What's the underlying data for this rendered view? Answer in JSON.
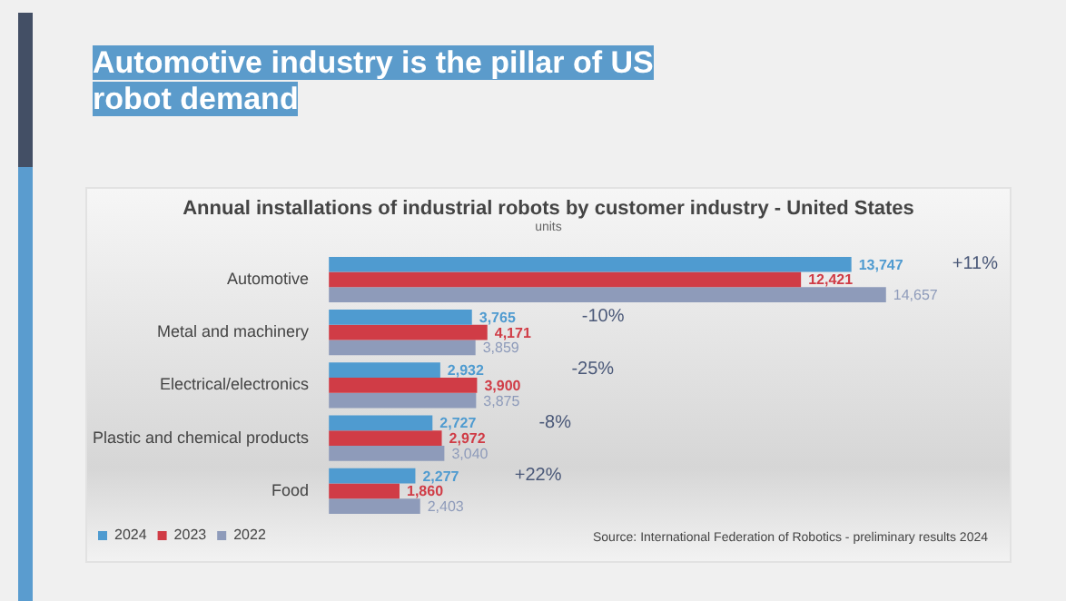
{
  "chart_data": {
    "type": "bar",
    "orientation": "horizontal",
    "title": "Automotive industry is the pillar of US robot demand",
    "subtitle": "Annual installations of industrial robots by customer industry - United States",
    "categories": [
      "Automotive",
      "Metal and machinery",
      "Electrical/electronics",
      "Plastic and chemical products",
      "Food"
    ],
    "series": [
      {
        "name": "2024",
        "color": "#4f9bd0",
        "values": [
          13747,
          3765,
          2932,
          2727,
          2277
        ],
        "value_labels": [
          "13,747",
          "3,765",
          "2,932",
          "2,727",
          "2,277"
        ]
      },
      {
        "name": "2023",
        "color": "#d03c46",
        "values": [
          12421,
          4171,
          3900,
          2972,
          1860
        ],
        "value_labels": [
          "12,421",
          "4,171",
          "3,900",
          "2,972",
          "1,860"
        ]
      },
      {
        "name": "2022",
        "color": "#8e9bba",
        "values": [
          14657,
          3859,
          3875,
          3040,
          2403
        ],
        "value_labels": [
          "14,657",
          "3,859",
          "3,875",
          "3,040",
          "2,403"
        ]
      }
    ],
    "tick_labels": "y",
    "legend": "bottom left",
    "annotations": [
      "units",
      "+11%",
      "-10%",
      "-25%",
      "-8%",
      "+22%",
      "Source: International Federation of Robotics - preliminary results 2024"
    ]
  }
}
